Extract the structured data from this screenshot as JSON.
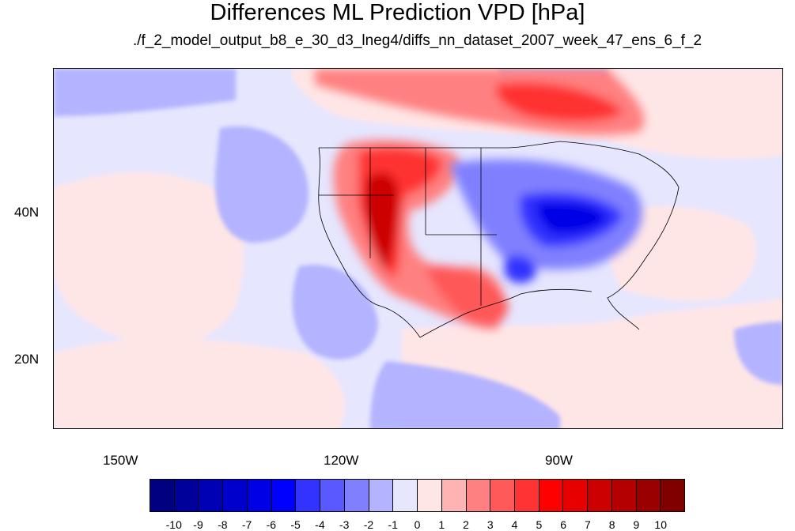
{
  "title": "Differences ML Prediction VPD [hPa]",
  "subtitle": "./f_2_model_output_b8_e_30_d3_lneg4/diffs_nn_dataset_2007_week_47_ens_6_f_2",
  "map": {
    "lat_range": [
      11,
      60
    ],
    "lon_range": [
      -159.5,
      -60.5
    ],
    "lat_ticks": [
      "40N",
      "20N"
    ],
    "lon_ticks": [
      "150W",
      "120W",
      "90W"
    ]
  },
  "colorbar": {
    "labels": [
      "-10",
      "-9",
      "-8",
      "-7",
      "-6",
      "-5",
      "-4",
      "-3",
      "-2",
      "-1",
      "0",
      "1",
      "2",
      "3",
      "4",
      "5",
      "6",
      "7",
      "8",
      "9",
      "10"
    ],
    "colors": [
      "#000080",
      "#00009a",
      "#0000b4",
      "#0000cd",
      "#0000e6",
      "#0000ff",
      "#3333ff",
      "#5959ff",
      "#8080ff",
      "#b3b3ff",
      "#e6e6ff",
      "#ffe6e6",
      "#ffb3b3",
      "#ff8080",
      "#ff5959",
      "#ff3333",
      "#ff0000",
      "#e60000",
      "#cd0000",
      "#b40000",
      "#9a0000",
      "#800000"
    ]
  }
}
